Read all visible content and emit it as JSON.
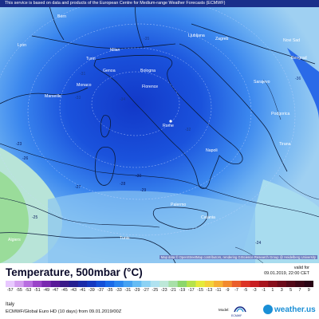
{
  "banner": {
    "text": "This service is based on data and products of the European Centre for Medium-range Weather Forecasts (ECMWF)"
  },
  "attribution": "Map data © OpenStreetMap contributors, rendering GIScience Research Group @ Heidelberg University",
  "cities": {
    "bern": "Bern",
    "milan": "Milan",
    "lyon": "Lyon",
    "turin": "Turin",
    "genoa": "Genoa",
    "monaco": "Monaco",
    "marseille": "Marseille",
    "bologna": "Bologna",
    "florence": "Florence",
    "rome": "Rome",
    "napoli": "Napoli",
    "palermo": "Palermo",
    "catania": "Catania",
    "ljubljana": "Ljubljana",
    "zagreb": "Zagreb",
    "sarajevo": "Sarajevo",
    "novi_sad": "Novi Sad",
    "beograd": "Beograd",
    "podgorica": "Podgorica",
    "tirana": "Tirana",
    "algiers": "Algiers",
    "tunis": "Tunis"
  },
  "isotherm_labels": [
    "-35",
    "-34",
    "-33",
    "-32",
    "-31",
    "-30",
    "-29",
    "-28",
    "-27",
    "-26",
    "-25",
    "-24",
    "-23",
    "-36"
  ],
  "legend": {
    "title": "Temperature, 500mbar (°C)",
    "valid_label": "valid for",
    "valid_time": "09.01.2019, 22:00 CET",
    "ticks": [
      "-57",
      "-55",
      "-53",
      "-51",
      "-49",
      "-47",
      "-45",
      "-43",
      "-41",
      "-39",
      "-37",
      "-35",
      "-33",
      "-31",
      "-29",
      "-27",
      "-25",
      "-23",
      "-21",
      "-19",
      "-17",
      "-15",
      "-13",
      "-11",
      "-9",
      "-7",
      "-5",
      "-3",
      "-1",
      "1",
      "3",
      "5",
      "7",
      "9"
    ],
    "colors": [
      "#e8c8ff",
      "#d49ef0",
      "#b86ee0",
      "#9a44c8",
      "#7a2ab0",
      "#5a1a98",
      "#3a1a88",
      "#241e90",
      "#1a2aa8",
      "#1438c0",
      "#1450d8",
      "#1a6ae8",
      "#2a86ef",
      "#46a2f2",
      "#66bcf4",
      "#8cd2f4",
      "#b0e2f0",
      "#bde8d8",
      "#a8e0a8",
      "#8cd66a",
      "#b6e24a",
      "#e6ea3a",
      "#f4d23a",
      "#f6b034",
      "#f28a2e",
      "#ea5e2a",
      "#dc3426",
      "#c81e22",
      "#a8141e",
      "#880e1c",
      "#6c0a1a",
      "#520818",
      "#3c0616",
      "#280414"
    ]
  },
  "footer": {
    "region": "Italy",
    "model": "ECMWF/Global Euro HD (10 days) from 09.01.2019/00Z",
    "model_label": "Model:",
    "ecmwf_text": "ECMWF",
    "brand": "weather.us"
  },
  "colors": {
    "deep_blue": "#1438c0",
    "mid_blue": "#2a6ae8",
    "light_blue": "#8cc8f4",
    "green": "#a8e0a8",
    "brand": "#1a8fd6"
  }
}
